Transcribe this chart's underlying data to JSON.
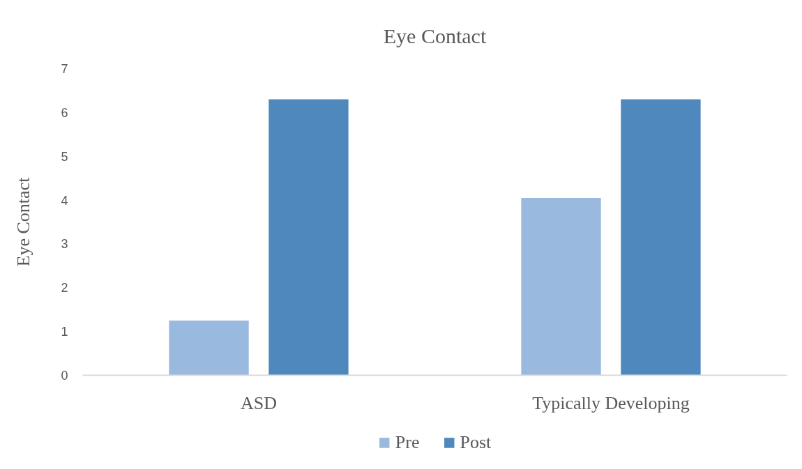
{
  "chart_data": {
    "type": "bar",
    "title": "Eye Contact",
    "ylabel": "Eye Contact",
    "categories": [
      "ASD",
      "Typically Developing"
    ],
    "series": [
      {
        "name": "Pre",
        "color": "#9ab9df",
        "values": [
          1.25,
          4.05
        ]
      },
      {
        "name": "Post",
        "color": "#4f88bc",
        "values": [
          6.3,
          6.3
        ]
      }
    ],
    "ylim": [
      0,
      7
    ],
    "yticks": [
      0,
      1,
      2,
      3,
      4,
      5,
      6,
      7
    ],
    "grid": false,
    "legend": "bottom"
  }
}
